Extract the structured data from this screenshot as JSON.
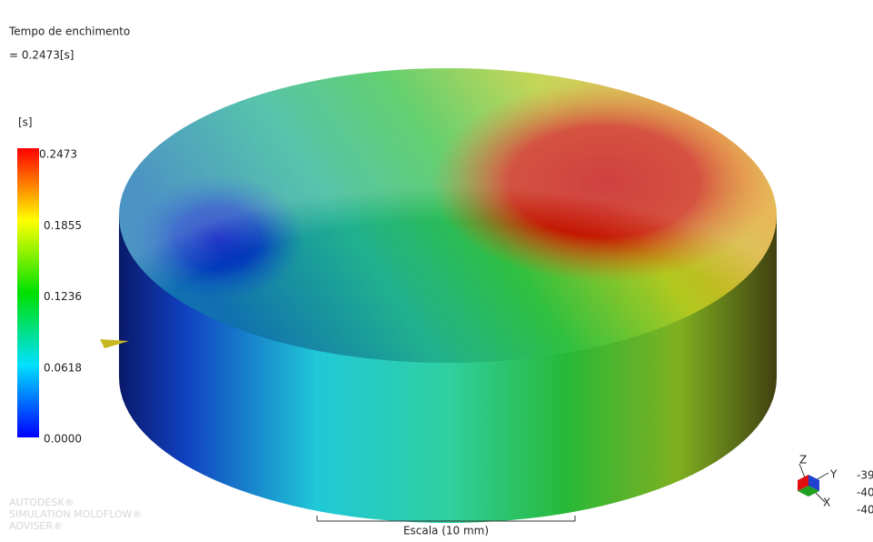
{
  "header": {
    "title": "Tempo de enchimento",
    "value": "= 0.2473[s]"
  },
  "legend": {
    "unit": "[s]",
    "ticks": [
      "0.2473",
      "0.1855",
      "0.1236",
      "0.0618",
      "0.0000"
    ]
  },
  "scale": "Escala (10 mm)",
  "watermark": [
    "AUTODESK®",
    "SIMULATION MOLDFLOW®",
    "ADVISER®"
  ],
  "triad": {
    "z": "Z",
    "y": "Y",
    "x": "X",
    "coords": [
      "-39",
      "-40",
      "-40"
    ]
  }
}
